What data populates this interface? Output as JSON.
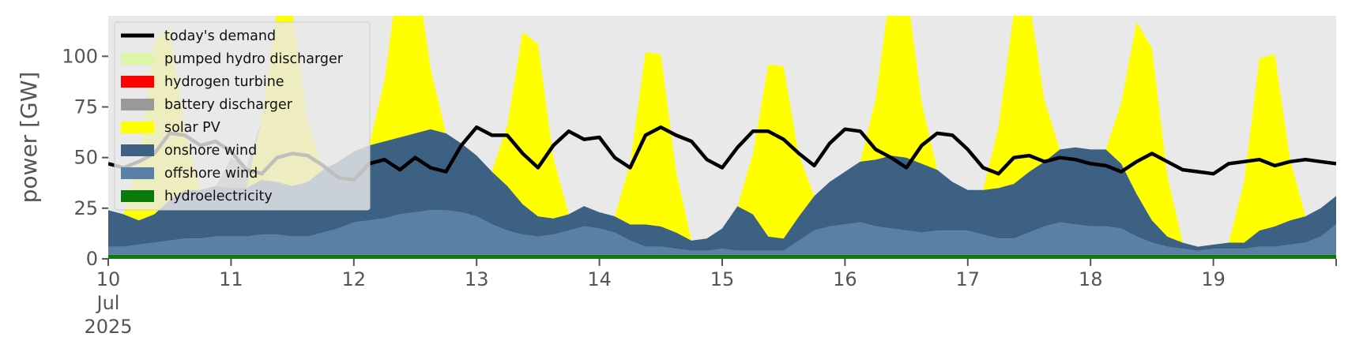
{
  "chart_data": {
    "type": "area",
    "ylabel": "power [GW]",
    "ylim": [
      0,
      120
    ],
    "xlim": [
      "2025-07-10 00:00",
      "2025-07-19 23:00"
    ],
    "y_ticks": [
      "0",
      "25",
      "50",
      "75",
      "100"
    ],
    "x_ticks": [
      {
        "lines": [
          "10",
          "Jul",
          "2025"
        ]
      },
      {
        "lines": [
          "11"
        ]
      },
      {
        "lines": [
          "12"
        ]
      },
      {
        "lines": [
          "13"
        ]
      },
      {
        "lines": [
          "14"
        ]
      },
      {
        "lines": [
          "15"
        ]
      },
      {
        "lines": [
          "16"
        ]
      },
      {
        "lines": [
          "17"
        ]
      },
      {
        "lines": [
          "18"
        ]
      },
      {
        "lines": [
          "19"
        ]
      }
    ],
    "grid": false,
    "legend_position": "top-left",
    "legend": [
      {
        "label": "today's demand",
        "color": "#000000",
        "kind": "line"
      },
      {
        "label": "pumped hydro discharger",
        "color": "#ddf5a8",
        "kind": "patch"
      },
      {
        "label": "hydrogen turbine",
        "color": "#ff0000",
        "kind": "patch"
      },
      {
        "label": "battery discharger",
        "color": "#999999",
        "kind": "patch"
      },
      {
        "label": "solar PV",
        "color": "#ffff00",
        "kind": "patch"
      },
      {
        "label": "onshore wind",
        "color": "#3c6183",
        "kind": "patch"
      },
      {
        "label": "offshore wind",
        "color": "#5b80a6",
        "kind": "patch"
      },
      {
        "label": "hydroelectricity",
        "color": "#0b7a0b",
        "kind": "patch"
      }
    ],
    "x_hours_step": 3,
    "series": [
      {
        "name": "hydroelectricity",
        "color": "#0b7a0b",
        "values": [
          2,
          2,
          2,
          2,
          2,
          2,
          2,
          2,
          2,
          2,
          2,
          2,
          2,
          2,
          2,
          2,
          2,
          2,
          2,
          2,
          2,
          2,
          2,
          2,
          2,
          2,
          2,
          2,
          2,
          2,
          2,
          2,
          2,
          2,
          2,
          2,
          2,
          2,
          2,
          2,
          2,
          2,
          2,
          2,
          2,
          2,
          2,
          2,
          2,
          2,
          2,
          2,
          2,
          2,
          2,
          2,
          2,
          2,
          2,
          2,
          2,
          2,
          2,
          2,
          2,
          2,
          2,
          2,
          2,
          2,
          2,
          2,
          2,
          2,
          2,
          2,
          2,
          2,
          2,
          2,
          2
        ]
      },
      {
        "name": "offshore wind",
        "color": "#5b80a6",
        "values": [
          4,
          4,
          5,
          6,
          7,
          8,
          8,
          9,
          9,
          9,
          10,
          10,
          9,
          9,
          11,
          13,
          16,
          17,
          18,
          20,
          21,
          22,
          22,
          21,
          19,
          15,
          12,
          10,
          9,
          10,
          12,
          14,
          13,
          11,
          7,
          4,
          4,
          3,
          2,
          2,
          3,
          2,
          2,
          2,
          2,
          7,
          12,
          14,
          15,
          16,
          14,
          13,
          12,
          11,
          12,
          12,
          12,
          10,
          8,
          8,
          11,
          14,
          16,
          15,
          14,
          14,
          13,
          9,
          6,
          4,
          3,
          2,
          3,
          3,
          3,
          4,
          4,
          5,
          6,
          9,
          15
        ]
      },
      {
        "name": "onshore wind",
        "color": "#3c6183",
        "values": [
          18,
          16,
          12,
          14,
          20,
          24,
          24,
          25,
          24,
          24,
          27,
          26,
          25,
          27,
          31,
          33,
          35,
          37,
          38,
          38,
          39,
          40,
          38,
          34,
          30,
          26,
          22,
          15,
          10,
          8,
          8,
          10,
          8,
          8,
          8,
          11,
          10,
          8,
          5,
          6,
          10,
          22,
          18,
          7,
          6,
          12,
          17,
          22,
          26,
          30,
          33,
          36,
          36,
          34,
          30,
          24,
          20,
          22,
          25,
          27,
          30,
          32,
          36,
          38,
          38,
          38,
          32,
          21,
          11,
          5,
          3,
          2,
          2,
          3,
          3,
          8,
          10,
          12,
          13,
          14,
          14
        ]
      },
      {
        "name": "solar PV",
        "color": "#ffff00",
        "values": [
          0,
          0,
          30,
          85,
          85,
          30,
          0,
          0,
          0,
          0,
          30,
          85,
          85,
          30,
          0,
          0,
          0,
          0,
          30,
          85,
          85,
          30,
          0,
          0,
          0,
          0,
          30,
          85,
          85,
          30,
          0,
          0,
          0,
          0,
          30,
          85,
          85,
          30,
          0,
          0,
          0,
          0,
          30,
          85,
          85,
          30,
          0,
          0,
          0,
          0,
          30,
          85,
          85,
          30,
          0,
          0,
          0,
          0,
          30,
          85,
          85,
          30,
          0,
          0,
          0,
          0,
          30,
          85,
          85,
          30,
          0,
          0,
          0,
          0,
          30,
          85,
          85,
          30,
          0,
          0,
          0
        ]
      },
      {
        "name": "battery discharger",
        "color": "#999999",
        "values": [
          0,
          0,
          0,
          0,
          0,
          0,
          0,
          0,
          15,
          10,
          0,
          0,
          0,
          0,
          0,
          0,
          0,
          0,
          0,
          0,
          0,
          0,
          0,
          0,
          0,
          0,
          0,
          0,
          0,
          0,
          0,
          0,
          0,
          0,
          0,
          0,
          0,
          0,
          0,
          0,
          0,
          0,
          0,
          0,
          0,
          0,
          0,
          0,
          0,
          0,
          0,
          0,
          0,
          0,
          0,
          0,
          0,
          0,
          0,
          0,
          0,
          0,
          0,
          0,
          0,
          0,
          0,
          0,
          0,
          0,
          0,
          0,
          0,
          0,
          0,
          0,
          0,
          0,
          0,
          0,
          0
        ]
      },
      {
        "name": "hydrogen turbine",
        "color": "#ff0000",
        "values": [
          0,
          0,
          0,
          0,
          0,
          0,
          0,
          0,
          0,
          0,
          0,
          0,
          0,
          0,
          0,
          0,
          0,
          0,
          0,
          0,
          0,
          0,
          0,
          0,
          0,
          0,
          0,
          0,
          0,
          0,
          0,
          0,
          0,
          0,
          0,
          0,
          0,
          0,
          0,
          0,
          0,
          0,
          0,
          0,
          0,
          0,
          0,
          0,
          0,
          0,
          0,
          0,
          0,
          0,
          0,
          0,
          0,
          0,
          0,
          0,
          0,
          0,
          0,
          0,
          0,
          0,
          0,
          0,
          0,
          0,
          0,
          0,
          0,
          0,
          0,
          0,
          0,
          0,
          0,
          0,
          0
        ]
      },
      {
        "name": "pumped hydro discharger",
        "color": "#ddf5a8",
        "values": [
          0,
          0,
          0,
          0,
          0,
          0,
          0,
          0,
          0,
          0,
          0,
          0,
          0,
          0,
          0,
          0,
          0,
          0,
          0,
          0,
          0,
          0,
          0,
          0,
          0,
          0,
          0,
          0,
          0,
          0,
          0,
          0,
          0,
          0,
          0,
          0,
          0,
          0,
          0,
          0,
          0,
          0,
          0,
          0,
          0,
          0,
          0,
          0,
          0,
          0,
          0,
          0,
          0,
          0,
          0,
          0,
          0,
          0,
          0,
          0,
          0,
          0,
          0,
          0,
          0,
          0,
          0,
          0,
          0,
          0,
          0,
          0,
          0,
          0,
          0,
          0,
          0,
          0,
          0,
          0,
          0
        ]
      }
    ],
    "demand": {
      "name": "today's demand",
      "color": "#000000",
      "values": [
        47,
        45,
        48,
        52,
        62,
        61,
        56,
        58,
        53,
        44,
        42,
        50,
        52,
        51,
        46,
        40,
        39,
        47,
        49,
        44,
        50,
        45,
        43,
        56,
        65,
        61,
        61,
        52,
        45,
        56,
        63,
        59,
        60,
        50,
        45,
        61,
        65,
        61,
        58,
        49,
        45,
        55,
        63,
        63,
        59,
        52,
        46,
        57,
        64,
        63,
        54,
        50,
        45,
        56,
        62,
        61,
        54,
        45,
        42,
        50,
        51,
        48,
        50,
        49,
        47,
        46,
        43,
        48,
        52,
        48,
        44,
        43,
        42,
        47,
        48,
        49,
        46,
        48,
        49,
        48,
        47
      ]
    }
  }
}
